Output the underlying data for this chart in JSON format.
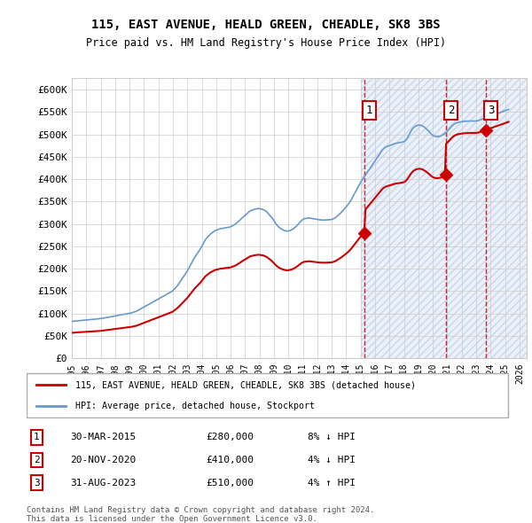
{
  "title": "115, EAST AVENUE, HEALD GREEN, CHEADLE, SK8 3BS",
  "subtitle": "Price paid vs. HM Land Registry's House Price Index (HPI)",
  "ylim": [
    0,
    625000
  ],
  "yticks": [
    0,
    50000,
    100000,
    150000,
    200000,
    250000,
    300000,
    350000,
    400000,
    450000,
    500000,
    550000,
    600000
  ],
  "ytick_labels": [
    "£0",
    "£50K",
    "£100K",
    "£150K",
    "£200K",
    "£250K",
    "£300K",
    "£350K",
    "£400K",
    "£450K",
    "£500K",
    "£550K",
    "£600K"
  ],
  "xlim_start": 1995.0,
  "xlim_end": 2026.5,
  "xtick_years": [
    1995,
    1996,
    1997,
    1998,
    1999,
    2000,
    2001,
    2002,
    2003,
    2004,
    2005,
    2006,
    2007,
    2008,
    2009,
    2010,
    2011,
    2012,
    2013,
    2014,
    2015,
    2016,
    2017,
    2018,
    2019,
    2020,
    2021,
    2022,
    2023,
    2024,
    2025,
    2026
  ],
  "legend_house_label": "115, EAST AVENUE, HEALD GREEN, CHEADLE, SK8 3BS (detached house)",
  "legend_hpi_label": "HPI: Average price, detached house, Stockport",
  "sale_markers": [
    {
      "num": 1,
      "date": "30-MAR-2015",
      "price": 280000,
      "note": "8% ↓ HPI",
      "x": 2015.25
    },
    {
      "num": 2,
      "date": "20-NOV-2020",
      "price": 410000,
      "note": "4% ↓ HPI",
      "x": 2020.9
    },
    {
      "num": 3,
      "date": "31-AUG-2023",
      "price": 510000,
      "note": "4% ↑ HPI",
      "x": 2023.67
    }
  ],
  "footnote": "Contains HM Land Registry data © Crown copyright and database right 2024.\nThis data is licensed under the Open Government Licence v3.0.",
  "hpi_color": "#6699cc",
  "house_color": "#cc0000",
  "sale_color": "#cc0000",
  "grid_color": "#cccccc",
  "dashed_line_color": "#cc0000",
  "hatch_start": 2015.0,
  "hatch_end": 2026.5,
  "house_data_x": [
    2015.25,
    2020.9,
    2023.67
  ],
  "house_data_y": [
    280000,
    410000,
    510000
  ]
}
